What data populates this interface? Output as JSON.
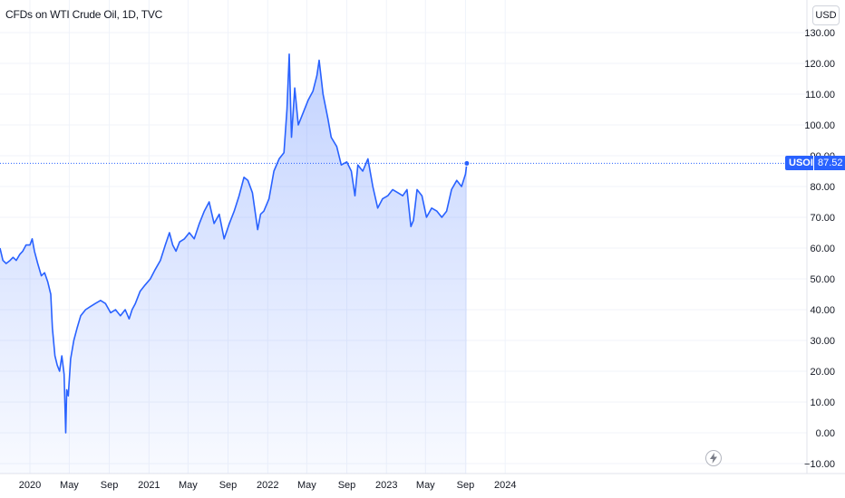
{
  "header": {
    "title": "CFDs on WTI Crude Oil, 1D, TVC",
    "currency": "USD"
  },
  "price_marker": {
    "symbol": "USOIL",
    "price": "87.52"
  },
  "icons": {
    "bolt": "lightning-bolt-icon"
  },
  "colors": {
    "line": "#2962ff",
    "fill": "#2962ff",
    "grid": "#f0f3fa",
    "axis_text": "#131722"
  },
  "chart_data": {
    "type": "area",
    "title": "CFDs on WTI Crude Oil, 1D, TVC",
    "xlabel": "",
    "ylabel": "",
    "ylim": [
      -10,
      130
    ],
    "grid": true,
    "y_ticks": [
      "130.00",
      "120.00",
      "110.00",
      "100.00",
      "90.00",
      "80.00",
      "70.00",
      "60.00",
      "50.00",
      "40.00",
      "30.00",
      "20.00",
      "10.00",
      "0.00",
      "−10.00"
    ],
    "x_ticks": [
      "2020",
      "May",
      "Sep",
      "2021",
      "May",
      "Sep",
      "2022",
      "May",
      "Sep",
      "2023",
      "May",
      "Sep",
      "2024"
    ],
    "x": [
      "2019-10-01",
      "2019-10-10",
      "2019-10-20",
      "2019-11-01",
      "2019-11-10",
      "2019-11-20",
      "2019-12-01",
      "2019-12-10",
      "2019-12-20",
      "2020-01-01",
      "2020-01-08",
      "2020-01-15",
      "2020-01-25",
      "2020-02-05",
      "2020-02-15",
      "2020-02-25",
      "2020-03-05",
      "2020-03-10",
      "2020-03-18",
      "2020-03-25",
      "2020-04-01",
      "2020-04-08",
      "2020-04-15",
      "2020-04-20",
      "2020-04-23",
      "2020-04-28",
      "2020-05-05",
      "2020-05-15",
      "2020-05-25",
      "2020-06-05",
      "2020-06-20",
      "2020-07-05",
      "2020-07-20",
      "2020-08-05",
      "2020-08-20",
      "2020-09-05",
      "2020-09-20",
      "2020-10-05",
      "2020-10-20",
      "2020-11-01",
      "2020-11-10",
      "2020-11-20",
      "2020-12-05",
      "2020-12-20",
      "2021-01-05",
      "2021-01-20",
      "2021-02-05",
      "2021-02-20",
      "2021-03-05",
      "2021-03-15",
      "2021-03-25",
      "2021-04-05",
      "2021-04-20",
      "2021-05-05",
      "2021-05-20",
      "2021-06-05",
      "2021-06-20",
      "2021-07-05",
      "2021-07-20",
      "2021-08-05",
      "2021-08-20",
      "2021-09-05",
      "2021-09-20",
      "2021-10-05",
      "2021-10-20",
      "2021-11-01",
      "2021-11-15",
      "2021-12-01",
      "2021-12-10",
      "2021-12-20",
      "2022-01-05",
      "2022-01-20",
      "2022-02-05",
      "2022-02-20",
      "2022-03-01",
      "2022-03-08",
      "2022-03-15",
      "2022-03-25",
      "2022-04-05",
      "2022-04-20",
      "2022-05-05",
      "2022-05-20",
      "2022-06-01",
      "2022-06-08",
      "2022-06-20",
      "2022-07-05",
      "2022-07-15",
      "2022-08-01",
      "2022-08-15",
      "2022-09-01",
      "2022-09-15",
      "2022-09-26",
      "2022-10-05",
      "2022-10-20",
      "2022-11-05",
      "2022-11-20",
      "2022-12-05",
      "2022-12-20",
      "2023-01-05",
      "2023-01-20",
      "2023-02-05",
      "2023-02-20",
      "2023-03-05",
      "2023-03-17",
      "2023-03-25",
      "2023-04-05",
      "2023-04-20",
      "2023-05-04",
      "2023-05-20",
      "2023-06-05",
      "2023-06-20",
      "2023-07-05",
      "2023-07-20",
      "2023-08-05",
      "2023-08-20",
      "2023-09-01",
      "2023-09-05"
    ],
    "series": [
      {
        "values": [
          60,
          56,
          55,
          56,
          57,
          56,
          58,
          59,
          61,
          61,
          63,
          59,
          55,
          51,
          52,
          49,
          45,
          34,
          25,
          22,
          20,
          25,
          19,
          0,
          14,
          12,
          24,
          30,
          34,
          38,
          40,
          41,
          42,
          43,
          42,
          39,
          40,
          38,
          40,
          37,
          40,
          42,
          46,
          48,
          50,
          53,
          56,
          61,
          65,
          61,
          59,
          62,
          63,
          65,
          63,
          68,
          72,
          75,
          68,
          71,
          63,
          68,
          72,
          77,
          83,
          82,
          78,
          66,
          71,
          72,
          76,
          85,
          89,
          91,
          105,
          123,
          96,
          112,
          100,
          104,
          108,
          111,
          116,
          121,
          110,
          102,
          96,
          93,
          87,
          88,
          85,
          77,
          87,
          85,
          89,
          80,
          73,
          76,
          77,
          79,
          78,
          77,
          79,
          67,
          69,
          79,
          77,
          70,
          73,
          72,
          70,
          72,
          79,
          82,
          80,
          84,
          87.52
        ]
      }
    ]
  }
}
